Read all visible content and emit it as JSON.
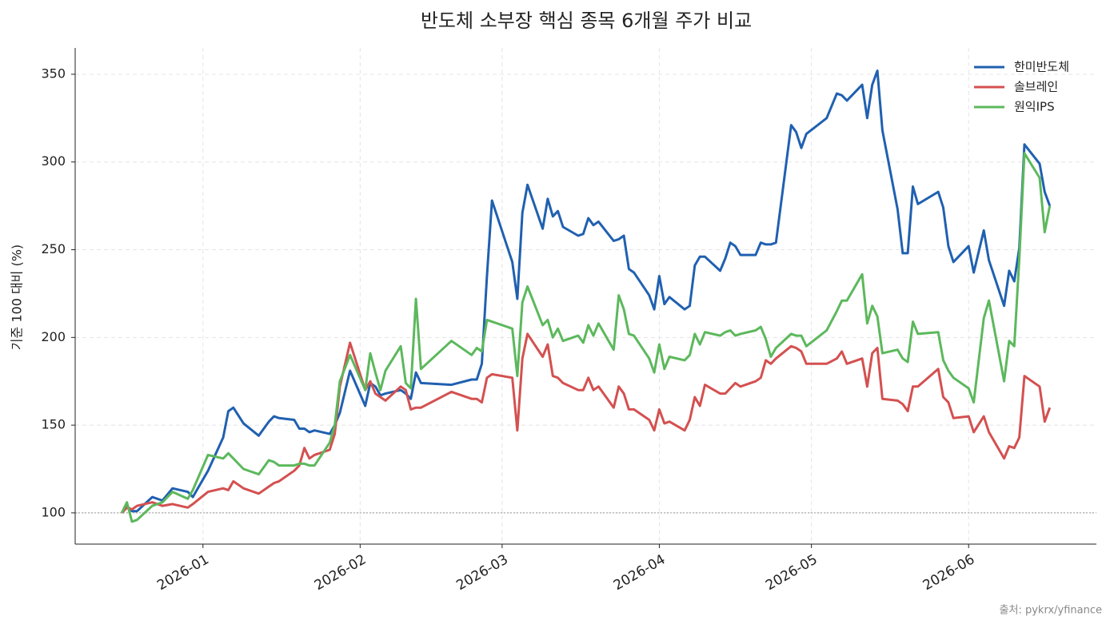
{
  "chart_data": {
    "type": "line",
    "title": "반도체 소부장 핵심 종목 6개월 주가 비교",
    "y_label": "기준 100 대비 (%)",
    "source": "출처: pykrx/yfinance",
    "x": [
      -16,
      -15,
      -14,
      -13,
      -10,
      -8,
      -6,
      -3,
      -2,
      1,
      4,
      5,
      6,
      8,
      11,
      13,
      14,
      15,
      18,
      19,
      20,
      21,
      22,
      25,
      26,
      27,
      29,
      32,
      33,
      34,
      35,
      36,
      39,
      40,
      41,
      42,
      43,
      49,
      53,
      54,
      55,
      56,
      57,
      61,
      62,
      63,
      64,
      67,
      68,
      69,
      70,
      71,
      74,
      75,
      76,
      77,
      78,
      81,
      82,
      83,
      84,
      85,
      88,
      89,
      90,
      91,
      92,
      95,
      96,
      97,
      98,
      99,
      102,
      103,
      104,
      105,
      106,
      109,
      110,
      111,
      112,
      113,
      116,
      117,
      118,
      119,
      123,
      125,
      126,
      127,
      130,
      131,
      132,
      133,
      134,
      137,
      138,
      139,
      140,
      141,
      145,
      146,
      147,
      148,
      151,
      152,
      154,
      155,
      158,
      159,
      160,
      161,
      162,
      165,
      166,
      167
    ],
    "series": [
      {
        "name": "한미반도체",
        "color": "#2060b0",
        "values": [
          100,
          104,
          101,
          101,
          109,
          107,
          114,
          112,
          109,
          124,
          143,
          158,
          160,
          151,
          144,
          152,
          155,
          154,
          153,
          148,
          148,
          146,
          147,
          145,
          150,
          157,
          181,
          161,
          174,
          172,
          167,
          168,
          170,
          168,
          165,
          180,
          174,
          173,
          176,
          176,
          185,
          235,
          278,
          243,
          222,
          271,
          287,
          262,
          279,
          269,
          272,
          263,
          258,
          259,
          268,
          264,
          266,
          255,
          256,
          258,
          239,
          237,
          224,
          216,
          235,
          219,
          223,
          216,
          218,
          241,
          246,
          246,
          238,
          245,
          254,
          252,
          247,
          247,
          254,
          253,
          253,
          254,
          321,
          317,
          308,
          316,
          325,
          339,
          338,
          335,
          344,
          325,
          344,
          352,
          318,
          273,
          248,
          248,
          286,
          276,
          283,
          274,
          252,
          243,
          252,
          237,
          261,
          244,
          218,
          238,
          232,
          251,
          310,
          299,
          283,
          275
        ]
      },
      {
        "name": "솔브레인",
        "color": "#d45050",
        "values": [
          100,
          103,
          102,
          104,
          106,
          104,
          105,
          103,
          105,
          112,
          114,
          113,
          118,
          114,
          111,
          115,
          117,
          118,
          124,
          127,
          137,
          131,
          133,
          136,
          145,
          172,
          197,
          170,
          175,
          168,
          166,
          164,
          172,
          170,
          159,
          160,
          160,
          169,
          165,
          165,
          163,
          177,
          179,
          177,
          147,
          188,
          202,
          189,
          196,
          178,
          177,
          174,
          170,
          170,
          177,
          170,
          172,
          160,
          172,
          168,
          159,
          159,
          153,
          147,
          159,
          151,
          152,
          147,
          153,
          166,
          161,
          173,
          168,
          168,
          171,
          174,
          172,
          175,
          177,
          187,
          185,
          188,
          195,
          194,
          192,
          185,
          185,
          188,
          192,
          185,
          188,
          172,
          191,
          194,
          165,
          164,
          162,
          158,
          172,
          172,
          182,
          166,
          163,
          154,
          155,
          146,
          155,
          146,
          131,
          138,
          137,
          143,
          178,
          172,
          152,
          160
        ]
      },
      {
        "name": "원익IPS",
        "color": "#5cb85c",
        "values": [
          100,
          106,
          95,
          96,
          104,
          106,
          112,
          108,
          113,
          133,
          131,
          134,
          131,
          125,
          122,
          130,
          129,
          127,
          127,
          128,
          128,
          127,
          127,
          140,
          150,
          175,
          190,
          170,
          191,
          180,
          170,
          181,
          195,
          174,
          171,
          222,
          182,
          198,
          190,
          194,
          192,
          210,
          209,
          205,
          178,
          220,
          229,
          207,
          210,
          200,
          205,
          198,
          201,
          197,
          207,
          201,
          208,
          193,
          224,
          216,
          202,
          201,
          188,
          180,
          196,
          182,
          189,
          187,
          190,
          202,
          196,
          203,
          201,
          203,
          204,
          201,
          202,
          204,
          206,
          199,
          189,
          194,
          202,
          201,
          201,
          195,
          204,
          215,
          221,
          221,
          236,
          208,
          218,
          212,
          191,
          193,
          188,
          186,
          209,
          202,
          203,
          187,
          181,
          177,
          171,
          163,
          211,
          221,
          175,
          198,
          195,
          245,
          305,
          291,
          260,
          275
        ]
      }
    ],
    "baseline": 100,
    "xlim": [
      -25.2,
      176.2
    ],
    "xticks": [
      {
        "value": 0,
        "label": "2026-01"
      },
      {
        "value": 31,
        "label": "2026-02"
      },
      {
        "value": 59,
        "label": "2026-03"
      },
      {
        "value": 90,
        "label": "2026-04"
      },
      {
        "value": 120,
        "label": "2026-05"
      },
      {
        "value": 151,
        "label": "2026-06"
      }
    ],
    "ylim": [
      82.2,
      365
    ],
    "yticks": [
      100,
      150,
      200,
      250,
      300,
      350
    ],
    "grid": true,
    "legend": "upper-right"
  }
}
